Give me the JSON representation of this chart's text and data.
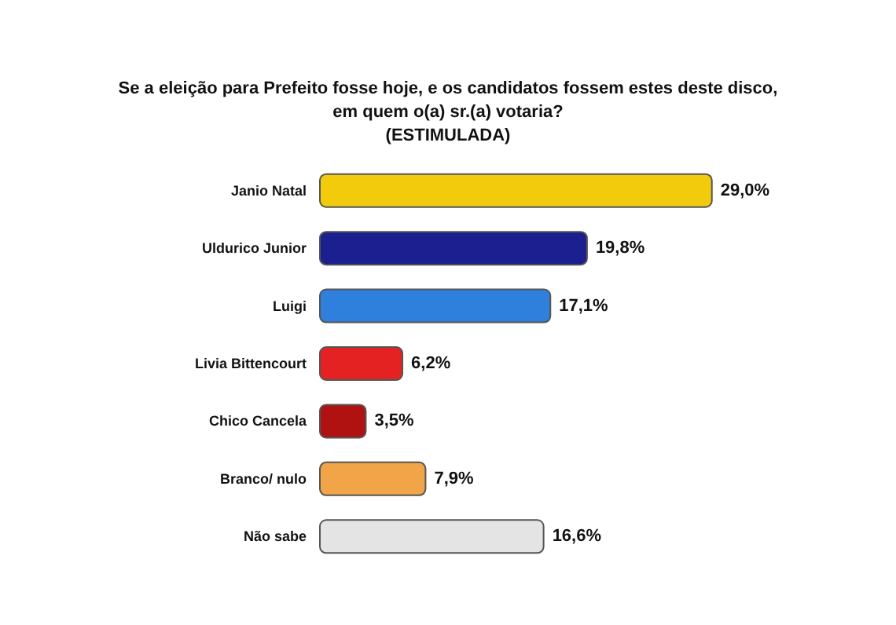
{
  "chart_data": {
    "type": "bar",
    "orientation": "horizontal",
    "title": "Se a eleição para Prefeito fosse hoje, e os candidatos fossem estes deste disco,\nem quem o(a) sr.(a) votaria?",
    "subtitle": "(ESTIMULADA)",
    "categories": [
      "Janio Natal",
      "Uldurico Junior",
      "Luigi",
      "Livia Bittencourt",
      "Chico Cancela",
      "Branco/ nulo",
      "Não sabe"
    ],
    "values": [
      29.0,
      19.8,
      17.1,
      6.2,
      3.5,
      7.9,
      16.6
    ],
    "value_labels": [
      "29,0%",
      "19,8%",
      "17,1%",
      "6,2%",
      "3,5%",
      "7,9%",
      "16,6%"
    ],
    "colors": [
      "#f2cc0c",
      "#1c1f8f",
      "#2f7fdc",
      "#e52222",
      "#b01212",
      "#f2a448",
      "#e4e4e4"
    ]
  }
}
